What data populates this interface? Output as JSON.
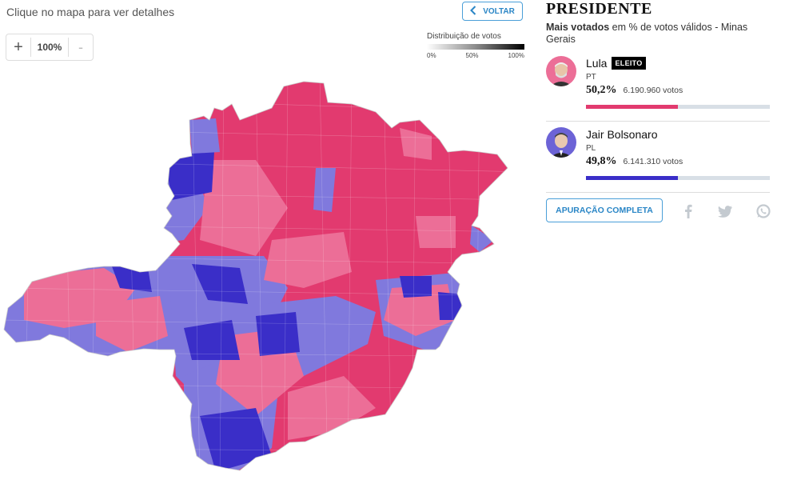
{
  "map": {
    "hint": "Clique no mapa para ver detalhes",
    "back_label": "VOLTAR",
    "zoom": {
      "plus": "+",
      "value": "100%",
      "minus": "-"
    },
    "legend": {
      "title": "Distribuição de votos",
      "ticks": [
        "0%",
        "50%",
        "100%"
      ]
    },
    "colors": {
      "lula_strong": "#e23a6f",
      "lula_mid": "#ec6e97",
      "bolsonaro_mid": "#8079dd",
      "bolsonaro_strong": "#3a2ec8"
    }
  },
  "panel": {
    "title": "PRESIDENTE",
    "subtitle_bold": "Mais votados",
    "subtitle_rest": " em % de votos válidos - Minas Gerais",
    "candidates": [
      {
        "name": "Lula",
        "badge": "ELEITO",
        "party": "PT",
        "pct": "50,2%",
        "share": 0.502,
        "votes": "6.190.960 votos",
        "color": "#e23a6f",
        "photo_bg": "#ec6e97"
      },
      {
        "name": "Jair Bolsonaro",
        "badge": "",
        "party": "PL",
        "pct": "49,8%",
        "share": 0.498,
        "votes": "6.141.310 votos",
        "color": "#3a2ec8",
        "photo_bg": "#6c63d6"
      }
    ],
    "full_results_label": "APURAÇÃO COMPLETA",
    "share_icons": [
      "facebook-icon",
      "twitter-icon",
      "whatsapp-icon"
    ]
  }
}
